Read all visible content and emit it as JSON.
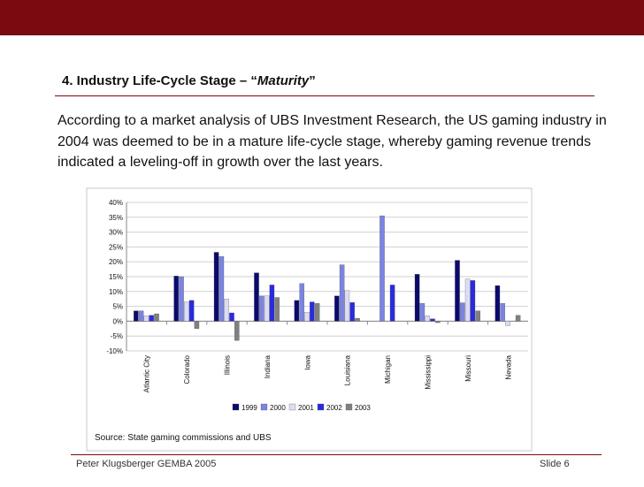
{
  "slide": {
    "title_prefix": "4. Industry Life-Cycle Stage – “",
    "title_em": "Maturity",
    "title_suffix": "”",
    "body": "According to a market analysis of UBS Investment Research, the US gaming industry in 2004 was deemed to be in a mature life-cycle stage, whereby gaming revenue trends indicated a leveling-off in growth over the last years.",
    "footer_left": "Peter Klugsberger GEMBA 2005",
    "footer_right": "Slide 6",
    "source": "Source: State gaming commissions and UBS"
  },
  "colors": {
    "topbar": "#7a0a0f",
    "series": [
      "#0a0a6e",
      "#7b84e0",
      "#dcdcf6",
      "#2a2ae0",
      "#808080"
    ]
  },
  "chart_data": {
    "type": "bar",
    "categories": [
      "Atlantic City",
      "Colorado",
      "Illinois",
      "Indiana",
      "Iowa",
      "Louisiana",
      "Michigan",
      "Mississippi",
      "Missouri",
      "Nevada"
    ],
    "series": [
      {
        "name": "1999",
        "values": [
          3.5,
          15.2,
          23.2,
          16.3,
          7.0,
          8.5,
          0,
          15.8,
          20.5,
          12.0
        ]
      },
      {
        "name": "2000",
        "values": [
          3.5,
          15.0,
          21.8,
          8.5,
          12.7,
          19.0,
          35.5,
          6.0,
          6.2,
          6.0
        ]
      },
      {
        "name": "2001",
        "values": [
          1.8,
          6.5,
          7.5,
          8.5,
          3.0,
          10.3,
          0,
          1.8,
          14.2,
          -1.5
        ]
      },
      {
        "name": "2002",
        "values": [
          2.0,
          7.0,
          2.8,
          12.2,
          6.5,
          6.3,
          12.2,
          0.8,
          13.7,
          0
        ]
      },
      {
        "name": "2003",
        "values": [
          2.5,
          -2.5,
          -6.5,
          8.0,
          6.0,
          1.0,
          0,
          -0.5,
          3.5,
          2.0
        ]
      }
    ],
    "ylim": [
      -10,
      40
    ],
    "yticks": [
      "-10%",
      "-5%",
      "0%",
      "5%",
      "10%",
      "15%",
      "20%",
      "25%",
      "30%",
      "35%",
      "40%"
    ],
    "ytick_values": [
      -10,
      -5,
      0,
      5,
      10,
      15,
      20,
      25,
      30,
      35,
      40
    ],
    "grid": true,
    "legend": "bottom"
  }
}
